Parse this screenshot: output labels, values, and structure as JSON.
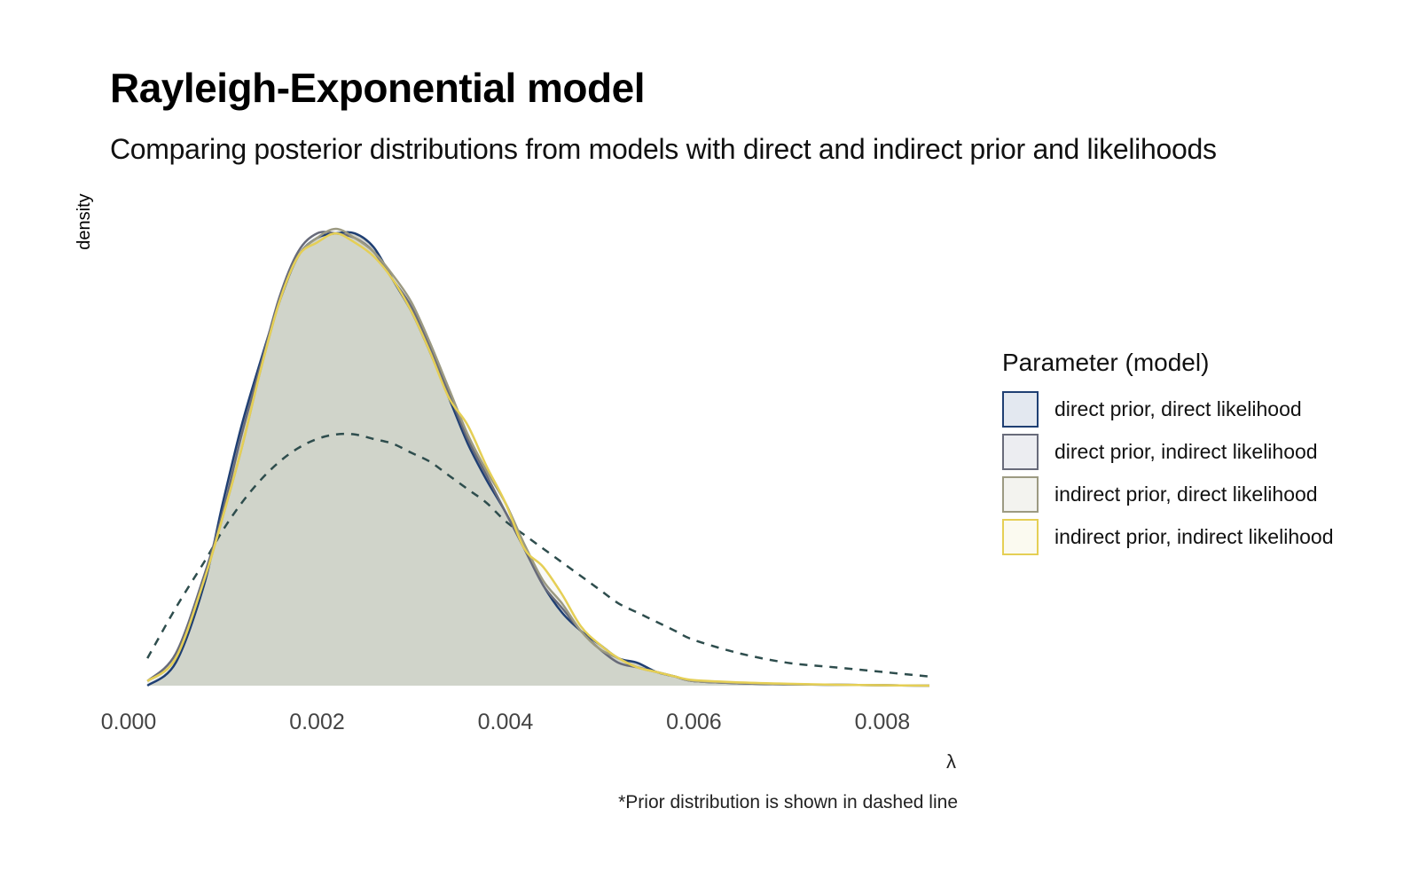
{
  "chart_data": {
    "type": "area",
    "title": "Rayleigh-Exponential model",
    "subtitle": "Comparing posterior distributions from models with direct and indirect prior and likelihoods",
    "xlabel": "λ",
    "ylabel": "density",
    "caption": "*Prior distribution is shown in dashed line",
    "xlim": [
      0,
      0.0085
    ],
    "x_ticks": [
      0,
      0.002,
      0.004,
      0.006,
      0.008
    ],
    "x_tick_labels": [
      "0.000",
      "0.002",
      "0.004",
      "0.006",
      "0.008"
    ],
    "ylim": [
      0,
      1.0
    ],
    "grid": false,
    "legend": {
      "title": "Parameter (model)",
      "placement": "right"
    },
    "x": [
      0.0002,
      0.0005,
      0.0008,
      0.001,
      0.0012,
      0.0014,
      0.0016,
      0.0018,
      0.002,
      0.0022,
      0.0024,
      0.0026,
      0.0028,
      0.003,
      0.0032,
      0.0034,
      0.0036,
      0.0038,
      0.004,
      0.0042,
      0.0044,
      0.0046,
      0.0048,
      0.005,
      0.0052,
      0.0054,
      0.0056,
      0.0058,
      0.006,
      0.0065,
      0.007,
      0.0075,
      0.008,
      0.0085
    ],
    "series": [
      {
        "name": "direct prior, direct likelihood",
        "color": "#1f3f73",
        "fill": "#e3e8f0",
        "dashed": false,
        "values": [
          0.0,
          0.05,
          0.22,
          0.4,
          0.57,
          0.71,
          0.84,
          0.94,
          0.98,
          0.99,
          0.99,
          0.96,
          0.89,
          0.82,
          0.73,
          0.63,
          0.53,
          0.45,
          0.38,
          0.3,
          0.22,
          0.16,
          0.12,
          0.09,
          0.06,
          0.05,
          0.03,
          0.02,
          0.01,
          0.005,
          0.003,
          0.002,
          0.001,
          0.0
        ]
      },
      {
        "name": "direct prior, indirect likelihood",
        "color": "#686b7a",
        "fill": "#ecedf1",
        "dashed": false,
        "values": [
          0.01,
          0.07,
          0.24,
          0.38,
          0.55,
          0.7,
          0.85,
          0.95,
          0.99,
          0.99,
          0.98,
          0.95,
          0.89,
          0.83,
          0.74,
          0.64,
          0.54,
          0.46,
          0.38,
          0.3,
          0.22,
          0.17,
          0.12,
          0.08,
          0.05,
          0.04,
          0.03,
          0.02,
          0.01,
          0.005,
          0.003,
          0.002,
          0.001,
          0.0
        ]
      },
      {
        "name": "indirect prior, direct likelihood",
        "color": "#9c9a82",
        "fill": "#f3f3ef",
        "dashed": false,
        "values": [
          0.01,
          0.06,
          0.23,
          0.37,
          0.52,
          0.69,
          0.84,
          0.94,
          0.98,
          1.0,
          0.98,
          0.95,
          0.9,
          0.84,
          0.75,
          0.65,
          0.55,
          0.47,
          0.4,
          0.31,
          0.23,
          0.18,
          0.12,
          0.08,
          0.06,
          0.04,
          0.03,
          0.02,
          0.01,
          0.006,
          0.003,
          0.002,
          0.001,
          0.0
        ]
      },
      {
        "name": "indirect prior, indirect likelihood",
        "color": "#e5cf55",
        "fill": "#fbfaf0",
        "dashed": false,
        "values": [
          0.01,
          0.06,
          0.23,
          0.37,
          0.52,
          0.69,
          0.84,
          0.94,
          0.97,
          0.99,
          0.97,
          0.94,
          0.89,
          0.82,
          0.73,
          0.63,
          0.57,
          0.48,
          0.4,
          0.3,
          0.26,
          0.2,
          0.13,
          0.09,
          0.06,
          0.04,
          0.03,
          0.02,
          0.012,
          0.007,
          0.004,
          0.002,
          0.001,
          0.0
        ]
      },
      {
        "name": "",
        "color": "#2e4d4d",
        "dashed": true,
        "values": [
          0.06,
          0.17,
          0.27,
          0.34,
          0.4,
          0.45,
          0.49,
          0.52,
          0.54,
          0.55,
          0.55,
          0.54,
          0.53,
          0.51,
          0.49,
          0.46,
          0.43,
          0.4,
          0.36,
          0.33,
          0.3,
          0.27,
          0.24,
          0.21,
          0.18,
          0.16,
          0.14,
          0.12,
          0.1,
          0.07,
          0.05,
          0.04,
          0.03,
          0.02
        ]
      }
    ],
    "overlap_fill": "#d3d4cb"
  }
}
